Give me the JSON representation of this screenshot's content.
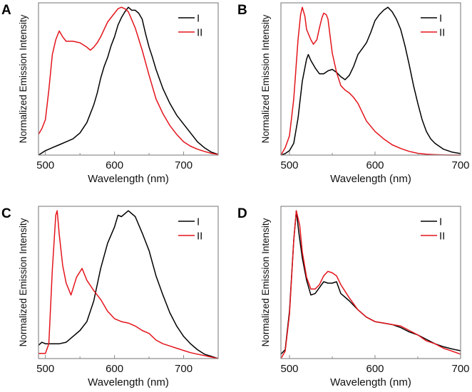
{
  "colors": {
    "I": "#000000",
    "II": "#e3141b",
    "frame": "#8a8a8a"
  },
  "chart_data": [
    {
      "type": "line",
      "panel": "A",
      "xlabel": "Wavelength (nm)",
      "ylabel": "Normalized Emission Intensity",
      "xlim": [
        490,
        750
      ],
      "ylim": [
        0,
        1.03
      ],
      "xticks": [
        500,
        600,
        700
      ],
      "legend": [
        "I",
        "II"
      ],
      "legend_position": "top-right",
      "series": [
        {
          "name": "I",
          "x": [
            490,
            500,
            510,
            520,
            530,
            540,
            550,
            560,
            565,
            570,
            575,
            580,
            585,
            590,
            595,
            600,
            605,
            610,
            615,
            620,
            625,
            630,
            635,
            640,
            645,
            650,
            655,
            660,
            670,
            680,
            690,
            700,
            710,
            720,
            730,
            740,
            750
          ],
          "y": [
            0,
            0.03,
            0.05,
            0.07,
            0.09,
            0.11,
            0.15,
            0.22,
            0.28,
            0.34,
            0.42,
            0.52,
            0.6,
            0.66,
            0.74,
            0.8,
            0.88,
            0.93,
            0.97,
            1.0,
            0.98,
            0.98,
            0.96,
            0.92,
            0.82,
            0.73,
            0.66,
            0.58,
            0.45,
            0.35,
            0.27,
            0.21,
            0.15,
            0.09,
            0.05,
            0.02,
            0.005
          ]
        },
        {
          "name": "II",
          "x": [
            490,
            495,
            500,
            505,
            510,
            515,
            520,
            525,
            530,
            540,
            550,
            560,
            565,
            570,
            575,
            580,
            590,
            600,
            605,
            610,
            615,
            620,
            630,
            640,
            650,
            660,
            670,
            680,
            690,
            700,
            710,
            720,
            730,
            740,
            750
          ],
          "y": [
            0.14,
            0.18,
            0.24,
            0.44,
            0.68,
            0.78,
            0.84,
            0.8,
            0.77,
            0.77,
            0.76,
            0.73,
            0.71,
            0.73,
            0.76,
            0.8,
            0.9,
            0.96,
            0.99,
            1.0,
            0.99,
            0.97,
            0.86,
            0.71,
            0.54,
            0.38,
            0.28,
            0.2,
            0.14,
            0.09,
            0.06,
            0.04,
            0.025,
            0.012,
            0.005
          ]
        }
      ]
    },
    {
      "type": "line",
      "panel": "B",
      "xlabel": "Wavelength (nm)",
      "ylabel": "Normalized Emission Intensity",
      "xlim": [
        490,
        700
      ],
      "ylim": [
        0,
        1.03
      ],
      "xticks": [
        500,
        600,
        700
      ],
      "legend": [
        "I",
        "II"
      ],
      "legend_position": "top-right",
      "series": [
        {
          "name": "I",
          "x": [
            490,
            495,
            500,
            505,
            510,
            515,
            520,
            522,
            525,
            530,
            535,
            540,
            545,
            550,
            555,
            560,
            565,
            570,
            575,
            580,
            585,
            590,
            595,
            600,
            605,
            610,
            615,
            620,
            625,
            630,
            635,
            640,
            645,
            650,
            655,
            660,
            665,
            670,
            680,
            690,
            700
          ],
          "y": [
            0,
            0.01,
            0.03,
            0.08,
            0.25,
            0.5,
            0.65,
            0.68,
            0.64,
            0.59,
            0.55,
            0.55,
            0.57,
            0.58,
            0.56,
            0.53,
            0.51,
            0.54,
            0.6,
            0.68,
            0.72,
            0.76,
            0.83,
            0.91,
            0.95,
            0.98,
            1.0,
            0.97,
            0.92,
            0.85,
            0.74,
            0.61,
            0.47,
            0.35,
            0.24,
            0.16,
            0.11,
            0.08,
            0.04,
            0.02,
            0.01
          ]
        },
        {
          "name": "II",
          "x": [
            490,
            495,
            500,
            505,
            510,
            513,
            515,
            518,
            520,
            525,
            528,
            532,
            535,
            538,
            540,
            543,
            545,
            550,
            555,
            560,
            565,
            570,
            575,
            580,
            590,
            600,
            610,
            620,
            630,
            640,
            650,
            660,
            670,
            680,
            690,
            700
          ],
          "y": [
            0,
            0.05,
            0.13,
            0.38,
            0.78,
            0.95,
            1.0,
            0.94,
            0.85,
            0.78,
            0.75,
            0.78,
            0.86,
            0.93,
            0.96,
            0.95,
            0.92,
            0.69,
            0.56,
            0.47,
            0.44,
            0.42,
            0.39,
            0.35,
            0.23,
            0.16,
            0.11,
            0.07,
            0.045,
            0.025,
            0.012,
            0.006,
            0.003,
            0.001,
            0,
            0
          ]
        }
      ]
    },
    {
      "type": "line",
      "panel": "C",
      "xlabel": "Wavelength (nm)",
      "ylabel": "Normalized Emission Intensity",
      "xlim": [
        490,
        750
      ],
      "ylim": [
        0,
        1.03
      ],
      "xticks": [
        500,
        600,
        700
      ],
      "legend": [
        "I",
        "II"
      ],
      "legend_position": "top-right",
      "series": [
        {
          "name": "I",
          "x": [
            490,
            495,
            500,
            510,
            520,
            530,
            540,
            550,
            560,
            570,
            580,
            590,
            600,
            605,
            610,
            620,
            630,
            640,
            650,
            660,
            670,
            680,
            690,
            700,
            710,
            720,
            730,
            740,
            750
          ],
          "y": [
            0.09,
            0.11,
            0.1,
            0.1,
            0.1,
            0.11,
            0.15,
            0.19,
            0.25,
            0.39,
            0.61,
            0.78,
            0.89,
            0.97,
            0.96,
            1.0,
            0.96,
            0.85,
            0.73,
            0.56,
            0.43,
            0.31,
            0.22,
            0.15,
            0.1,
            0.06,
            0.03,
            0.015,
            0
          ]
        },
        {
          "name": "II",
          "x": [
            490,
            500,
            505,
            510,
            515,
            517,
            520,
            525,
            530,
            537,
            545,
            553,
            560,
            570,
            580,
            590,
            600,
            610,
            620,
            630,
            640,
            650,
            660,
            670,
            680,
            690,
            700,
            710,
            720,
            730,
            740,
            750
          ],
          "y": [
            0.035,
            0.035,
            0.1,
            0.6,
            0.97,
            1.0,
            0.84,
            0.63,
            0.51,
            0.43,
            0.55,
            0.61,
            0.53,
            0.46,
            0.4,
            0.32,
            0.27,
            0.25,
            0.24,
            0.22,
            0.19,
            0.17,
            0.125,
            0.1,
            0.085,
            0.07,
            0.055,
            0.04,
            0.03,
            0.02,
            0.01,
            0
          ]
        }
      ]
    },
    {
      "type": "line",
      "panel": "D",
      "xlabel": "Wavelength (nm)",
      "ylabel": "Normalized Emission Intensity",
      "xlim": [
        490,
        700
      ],
      "ylim": [
        0,
        1.03
      ],
      "xticks": [
        500,
        600,
        700
      ],
      "legend": [
        "I",
        "II"
      ],
      "legend_position": "top-right",
      "series": [
        {
          "name": "I",
          "x": [
            490,
            495,
            500,
            505,
            508,
            511,
            515,
            520,
            525,
            530,
            535,
            540,
            545,
            550,
            555,
            560,
            570,
            580,
            590,
            600,
            610,
            620,
            630,
            640,
            650,
            660,
            670,
            680,
            690,
            700
          ],
          "y": [
            0.03,
            0.06,
            0.32,
            0.8,
            1.0,
            0.85,
            0.68,
            0.53,
            0.43,
            0.44,
            0.48,
            0.52,
            0.51,
            0.51,
            0.52,
            0.44,
            0.39,
            0.33,
            0.28,
            0.25,
            0.24,
            0.23,
            0.21,
            0.18,
            0.16,
            0.13,
            0.1,
            0.08,
            0.065,
            0.053
          ]
        },
        {
          "name": "II",
          "x": [
            490,
            495,
            500,
            505,
            508,
            512,
            515,
            520,
            525,
            530,
            535,
            540,
            545,
            550,
            555,
            560,
            570,
            580,
            590,
            600,
            610,
            620,
            630,
            640,
            650,
            660,
            670,
            680,
            690,
            700
          ],
          "y": [
            0,
            0.05,
            0.3,
            0.8,
            1.0,
            0.9,
            0.72,
            0.55,
            0.47,
            0.47,
            0.5,
            0.56,
            0.59,
            0.58,
            0.56,
            0.5,
            0.41,
            0.33,
            0.28,
            0.25,
            0.24,
            0.23,
            0.22,
            0.19,
            0.16,
            0.12,
            0.1,
            0.07,
            0.05,
            0.03
          ]
        }
      ]
    }
  ]
}
